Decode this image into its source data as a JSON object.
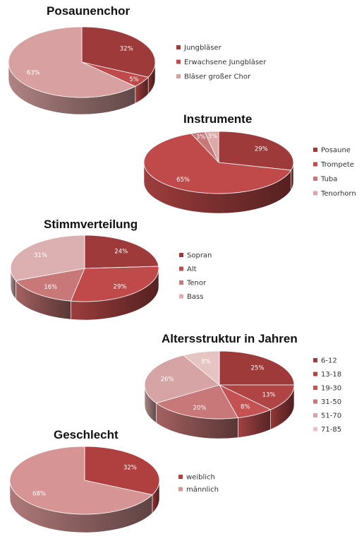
{
  "chart_data": [
    {
      "type": "pie",
      "title": "Posaunenchor",
      "categories": [
        "Jungbläser",
        "Erwachsene Jungbläser",
        "Bläser großer Chor"
      ],
      "values": [
        32,
        5,
        63
      ],
      "labels": [
        "32%",
        "5%",
        "63%"
      ],
      "colors": [
        "#9e3a3a",
        "#c04a4a",
        "#d8a0a0"
      ]
    },
    {
      "type": "pie",
      "title": "Instrumente",
      "categories": [
        "Posaune",
        "Trompete",
        "Tuba",
        "Tenorhorn"
      ],
      "values": [
        29,
        65,
        3,
        3
      ],
      "labels": [
        "29%",
        "65%",
        "3%",
        "3%"
      ],
      "colors": [
        "#9e3a3a",
        "#c04a4a",
        "#c87878",
        "#dca8a8"
      ]
    },
    {
      "type": "pie",
      "title": "Stimmverteilung",
      "categories": [
        "Sopran",
        "Alt",
        "Tenor",
        "Bass"
      ],
      "values": [
        24,
        29,
        16,
        31
      ],
      "labels": [
        "24%",
        "29%",
        "16%",
        "31%"
      ],
      "colors": [
        "#9e3a3a",
        "#c04a4a",
        "#c87878",
        "#dcb0b0"
      ]
    },
    {
      "type": "pie",
      "title": "Altersstruktur in Jahren",
      "categories": [
        "6-12",
        "13-18",
        "19-30",
        "31-50",
        "51-70",
        "71-85"
      ],
      "values": [
        25,
        13,
        8,
        20,
        26,
        8
      ],
      "labels": [
        "25%",
        "13%",
        "8%",
        "20%",
        "26%",
        "8%"
      ],
      "colors": [
        "#9e3a3a",
        "#b04444",
        "#c45252",
        "#c87878",
        "#d6a4a4",
        "#e6c4c4"
      ]
    },
    {
      "type": "pie",
      "title": "Geschlecht",
      "categories": [
        "weiblich",
        "männlich"
      ],
      "values": [
        32,
        68
      ],
      "labels": [
        "32%",
        "68%"
      ],
      "colors": [
        "#b04040",
        "#d69494"
      ]
    }
  ]
}
